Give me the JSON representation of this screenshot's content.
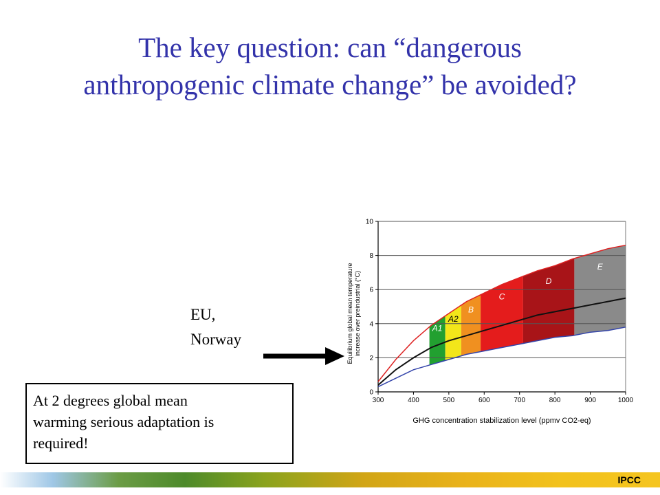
{
  "slide": {
    "title_line1": "The key question: can “dangerous",
    "title_line2": "anthropogenic climate change” be avoided?",
    "arrow_label_line1": "EU,",
    "arrow_label_line2": "Norway",
    "note_line1": "At 2 degrees global mean",
    "note_line2": "warming serious adaptation is",
    "note_line3": "required!",
    "source": "IPCC"
  },
  "chart_data": {
    "type": "area",
    "xlabel": "GHG concentration stabilization level (ppmv CO2-eq)",
    "ylabel_line1": "Equilibrium global mean temperature",
    "ylabel_line2": "increase over preindustrial (°C)",
    "xlim": [
      300,
      1000
    ],
    "ylim": [
      0,
      10
    ],
    "x_ticks": [
      300,
      400,
      500,
      600,
      700,
      800,
      900,
      1000
    ],
    "y_ticks": [
      0,
      2,
      4,
      6,
      8,
      10
    ],
    "grid": true,
    "x": [
      300,
      350,
      400,
      450,
      500,
      550,
      600,
      650,
      700,
      750,
      800,
      850,
      900,
      950,
      1000
    ],
    "series": [
      {
        "role": "upper",
        "color": "#dd2222",
        "values": [
          0.6,
          1.9,
          3.0,
          3.9,
          4.6,
          5.3,
          5.8,
          6.3,
          6.7,
          7.1,
          7.4,
          7.8,
          8.1,
          8.4,
          8.6
        ]
      },
      {
        "role": "best",
        "color": "#111111",
        "values": [
          0.4,
          1.3,
          2.0,
          2.6,
          3.0,
          3.3,
          3.6,
          3.9,
          4.2,
          4.5,
          4.7,
          4.9,
          5.1,
          5.3,
          5.5
        ]
      },
      {
        "role": "lower",
        "color": "#3344aa",
        "values": [
          0.3,
          0.8,
          1.3,
          1.6,
          1.9,
          2.2,
          2.4,
          2.6,
          2.8,
          3.0,
          3.2,
          3.3,
          3.5,
          3.6,
          3.8
        ]
      }
    ],
    "regions": [
      {
        "label": "A1",
        "from": 445,
        "to": 490,
        "color": "#22a030"
      },
      {
        "label": "A2",
        "from": 490,
        "to": 535,
        "color": "#f2e61a"
      },
      {
        "label": "B",
        "from": 535,
        "to": 590,
        "color": "#f09020"
      },
      {
        "label": "C",
        "from": 590,
        "to": 710,
        "color": "#e41c1c"
      },
      {
        "label": "D",
        "from": 710,
        "to": 855,
        "color": "#a81418"
      },
      {
        "label": "E",
        "from": 855,
        "to": 1000,
        "color": "#8a8a8a"
      }
    ]
  }
}
